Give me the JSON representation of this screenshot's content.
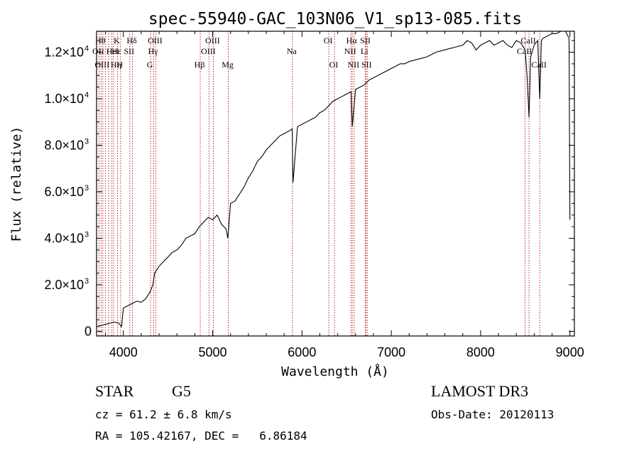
{
  "chart_data": {
    "type": "line",
    "title": "spec-55940-GAC_103N06_V1_sp13-085.fits",
    "xlabel": "Wavelength (Å)",
    "ylabel": "Flux (relative)",
    "xlim": [
      3700,
      9050
    ],
    "ylim": [
      -200,
      12900
    ],
    "x_ticks": [
      {
        "value": 4000,
        "label": "4000"
      },
      {
        "value": 5000,
        "label": "5000"
      },
      {
        "value": 6000,
        "label": "6000"
      },
      {
        "value": 7000,
        "label": "7000"
      },
      {
        "value": 8000,
        "label": "8000"
      },
      {
        "value": 9000,
        "label": "9000"
      }
    ],
    "y_ticks": [
      {
        "value": 0,
        "mant": "0",
        "exp": ""
      },
      {
        "value": 2000,
        "mant": "2.0×10",
        "exp": "3"
      },
      {
        "value": 4000,
        "mant": "4.0×10",
        "exp": "3"
      },
      {
        "value": 6000,
        "mant": "6.0×10",
        "exp": "3"
      },
      {
        "value": 8000,
        "mant": "8.0×10",
        "exp": "3"
      },
      {
        "value": 10000,
        "mant": "1.0×10",
        "exp": "4"
      },
      {
        "value": 12000,
        "mant": "1.2×10",
        "exp": "4"
      }
    ],
    "spectrum": {
      "name": "flux",
      "x": [
        3700,
        3750,
        3800,
        3850,
        3900,
        3950,
        3980,
        4000,
        4050,
        4100,
        4150,
        4200,
        4250,
        4300,
        4330,
        4350,
        4400,
        4450,
        4500,
        4550,
        4600,
        4650,
        4700,
        4750,
        4800,
        4850,
        4900,
        4950,
        5000,
        5050,
        5100,
        5150,
        5170,
        5200,
        5250,
        5300,
        5350,
        5400,
        5450,
        5500,
        5550,
        5600,
        5650,
        5700,
        5750,
        5800,
        5850,
        5890,
        5900,
        5950,
        6000,
        6050,
        6100,
        6150,
        6200,
        6250,
        6300,
        6350,
        6400,
        6450,
        6500,
        6550,
        6563,
        6600,
        6650,
        6700,
        6750,
        6800,
        6850,
        6900,
        6950,
        7000,
        7050,
        7100,
        7150,
        7200,
        7300,
        7400,
        7500,
        7600,
        7700,
        7800,
        7850,
        7900,
        7950,
        8000,
        8050,
        8100,
        8150,
        8200,
        8250,
        8300,
        8350,
        8400,
        8450,
        8498,
        8520,
        8542,
        8560,
        8600,
        8640,
        8662,
        8680,
        8700,
        8750,
        8800,
        8850,
        8900,
        8950,
        8990,
        9000
      ],
      "y": [
        200,
        250,
        300,
        350,
        400,
        350,
        200,
        1000,
        1100,
        1200,
        1300,
        1250,
        1400,
        1700,
        2000,
        2500,
        2800,
        3000,
        3200,
        3400,
        3500,
        3700,
        4000,
        4100,
        4200,
        4500,
        4700,
        4900,
        4800,
        5000,
        4600,
        4400,
        4000,
        5500,
        5600,
        5900,
        6200,
        6600,
        6900,
        7300,
        7500,
        7800,
        8000,
        8200,
        8400,
        8500,
        8600,
        8700,
        6400,
        8800,
        8900,
        9000,
        9100,
        9200,
        9400,
        9500,
        9700,
        9900,
        10000,
        10100,
        10200,
        10300,
        8800,
        10400,
        10500,
        10600,
        10800,
        10900,
        11000,
        11100,
        11200,
        11300,
        11400,
        11500,
        11500,
        11600,
        11700,
        11800,
        12000,
        12100,
        12200,
        12300,
        12500,
        12400,
        12100,
        12300,
        12400,
        12500,
        12300,
        12400,
        12500,
        12300,
        12200,
        12500,
        12400,
        12100,
        11000,
        9200,
        11800,
        12300,
        12500,
        10000,
        12500,
        12600,
        12700,
        12800,
        12800,
        12900,
        12900,
        12600,
        4800
      ]
    },
    "line_markers": [
      {
        "wavelength": 3750,
        "label": "Hθ",
        "row": 0,
        "xoff": 0
      },
      {
        "wavelength": 3727,
        "label": "OII",
        "row": 1,
        "xoff": 0
      },
      {
        "wavelength": 3770,
        "label": "OIII",
        "row": 2,
        "xoff": 0
      },
      {
        "wavelength": 3798,
        "label": "Hη",
        "row": 2,
        "xoff": 16
      },
      {
        "wavelength": 3835,
        "label": "Hε",
        "row": 1,
        "xoff": 12
      },
      {
        "wavelength": 3869,
        "label": "",
        "row": -1,
        "xoff": 0
      },
      {
        "wavelength": 3889,
        "label": "HeI",
        "row": 1,
        "xoff": 0
      },
      {
        "wavelength": 3934,
        "label": "K",
        "row": 0,
        "xoff": 0
      },
      {
        "wavelength": 3969,
        "label": "H",
        "row": 2,
        "xoff": 0
      },
      {
        "wavelength": 4072,
        "label": "SII",
        "row": 1,
        "xoff": 0
      },
      {
        "wavelength": 4102,
        "label": "Hδ",
        "row": 0,
        "xoff": 0
      },
      {
        "wavelength": 4305,
        "label": "G",
        "row": 2,
        "xoff": 0
      },
      {
        "wavelength": 4340,
        "label": "Hγ",
        "row": 1,
        "xoff": 0
      },
      {
        "wavelength": 4363,
        "label": "OIII",
        "row": 0,
        "xoff": 0
      },
      {
        "wavelength": 4861,
        "label": "Hβ",
        "row": 2,
        "xoff": 0
      },
      {
        "wavelength": 4959,
        "label": "OIII",
        "row": 1,
        "xoff": 0
      },
      {
        "wavelength": 5007,
        "label": "OIII",
        "row": 0,
        "xoff": 0
      },
      {
        "wavelength": 5175,
        "label": "Mg",
        "row": 2,
        "xoff": 0
      },
      {
        "wavelength": 5893,
        "label": "Na",
        "row": 1,
        "xoff": 0
      },
      {
        "wavelength": 6300,
        "label": "OI",
        "row": 0,
        "xoff": 0
      },
      {
        "wavelength": 6364,
        "label": "OI",
        "row": 2,
        "xoff": 0
      },
      {
        "wavelength": 6548,
        "label": "NII",
        "row": 1,
        "xoff": 0
      },
      {
        "wavelength": 6563,
        "label": "Hα",
        "row": 0,
        "xoff": 0
      },
      {
        "wavelength": 6584,
        "label": "NII",
        "row": 2,
        "xoff": 0
      },
      {
        "wavelength": 6707,
        "label": "Li",
        "row": 1,
        "xoff": 0
      },
      {
        "wavelength": 6717,
        "label": "SII",
        "row": 0,
        "xoff": 0
      },
      {
        "wavelength": 6731,
        "label": "SII",
        "row": 2,
        "xoff": 0
      },
      {
        "wavelength": 8498,
        "label": "CaII",
        "row": 1,
        "xoff": 0
      },
      {
        "wavelength": 8542,
        "label": "CaII",
        "row": 0,
        "xoff": 0
      },
      {
        "wavelength": 8662,
        "label": "CaII",
        "row": 2,
        "xoff": 0
      }
    ]
  },
  "info": {
    "class": "STAR",
    "subclass": "G5",
    "survey": "LAMOST DR3",
    "redshift": "cz = 61.2 ± 6.8 km/s",
    "obs_date": "Obs-Date: 20120113",
    "coords": "RA = 105.42167, DEC =   6.86184"
  }
}
